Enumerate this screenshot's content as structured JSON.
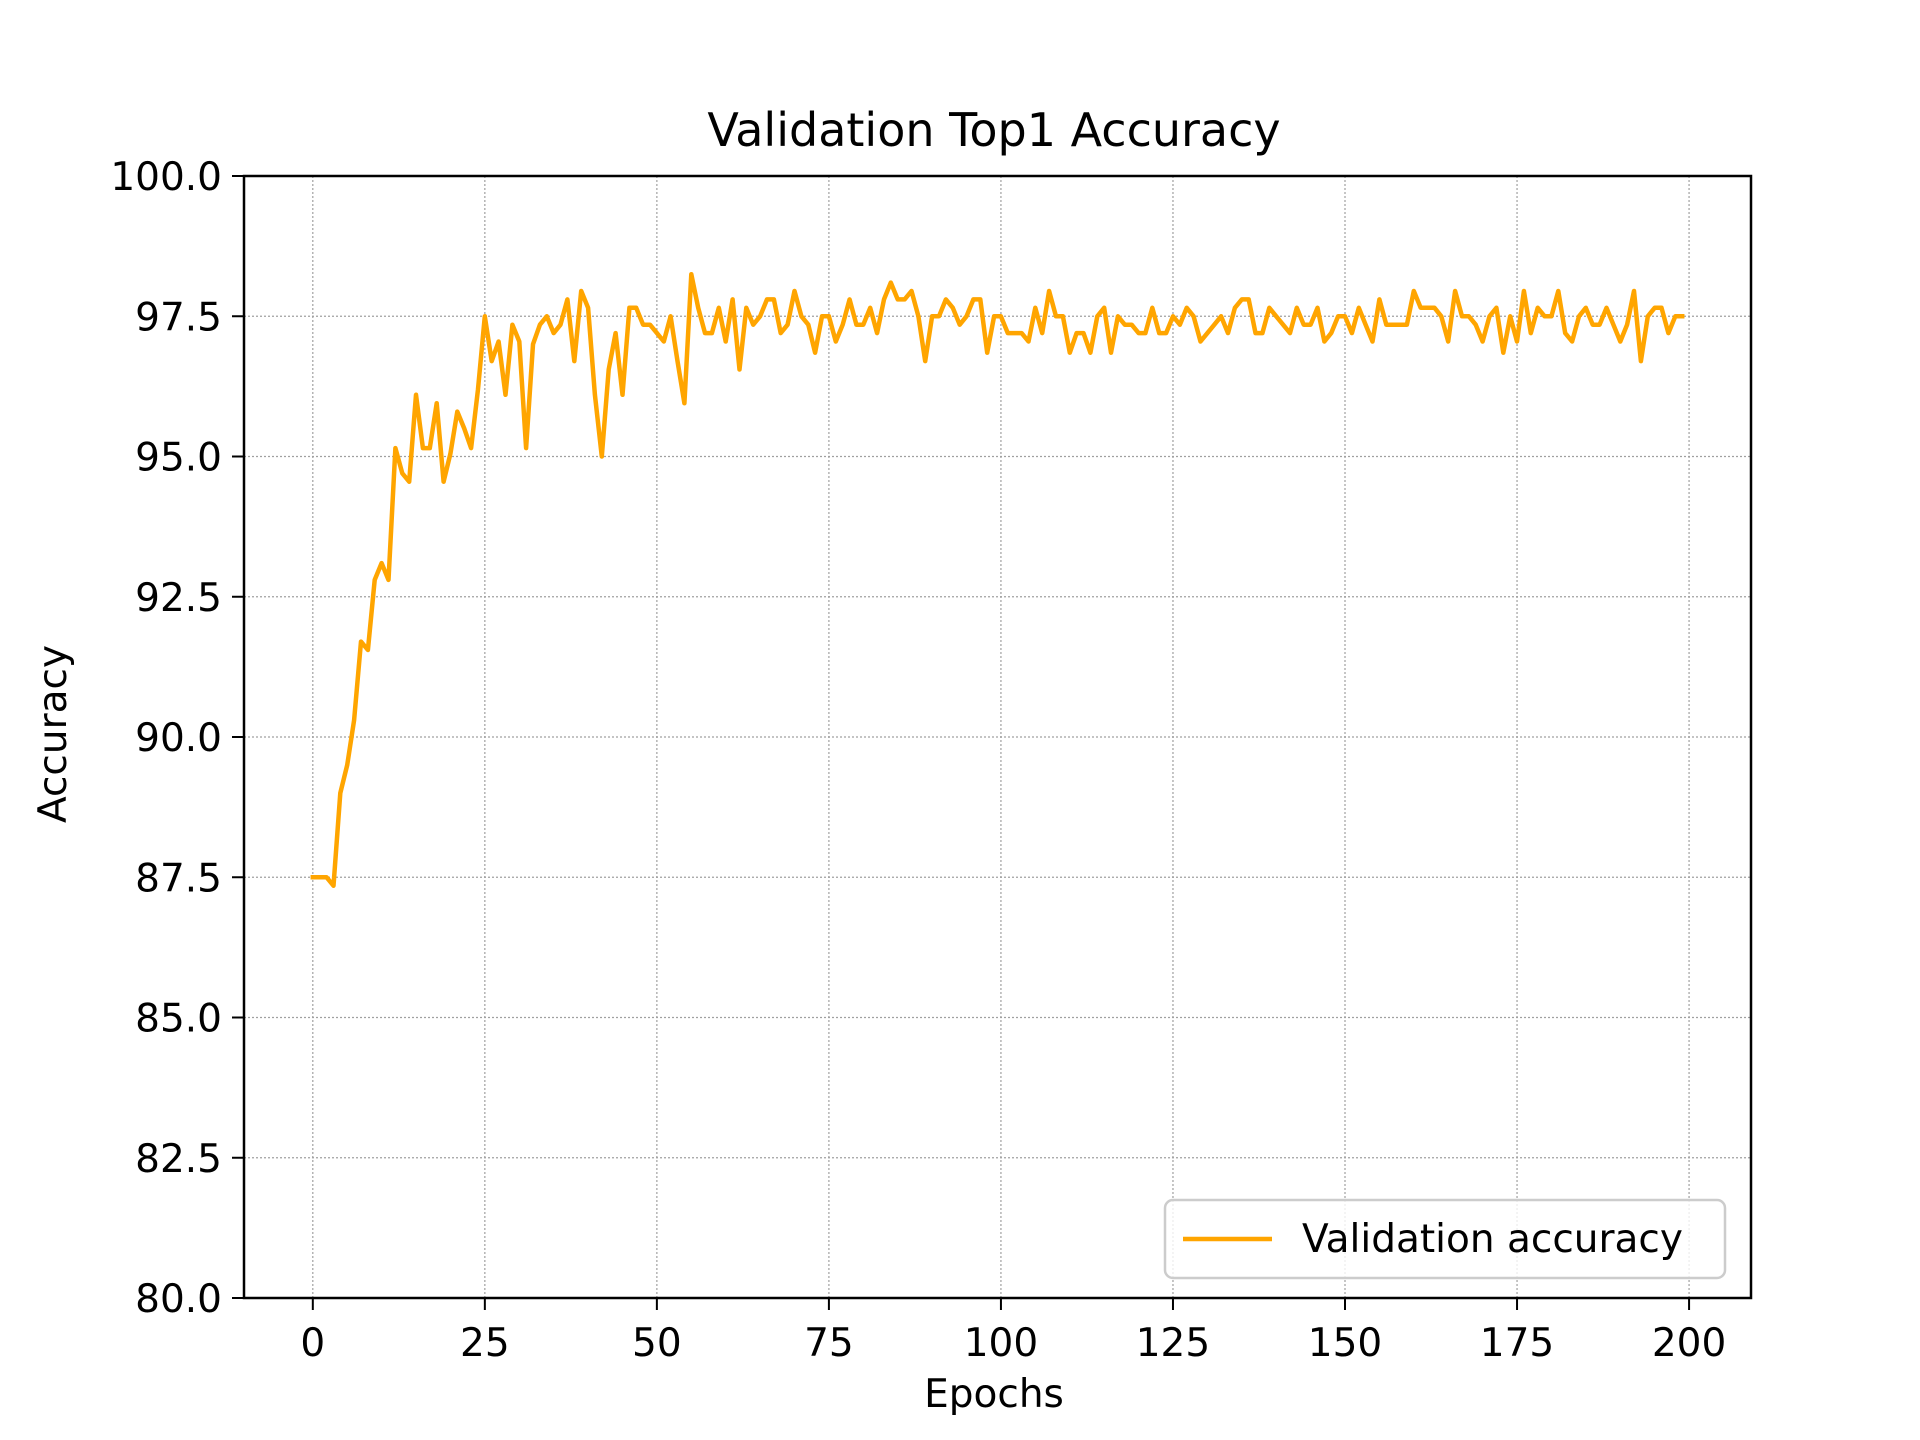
{
  "chart_data": {
    "type": "line",
    "title": "Validation Top1 Accuracy",
    "xlabel": "Epochs",
    "ylabel": "Accuracy",
    "xlim": [
      -10,
      209
    ],
    "ylim": [
      80.0,
      100.0
    ],
    "xticks": [
      0,
      25,
      50,
      75,
      100,
      125,
      150,
      175,
      200
    ],
    "xtick_labels": [
      "0",
      "25",
      "50",
      "75",
      "100",
      "125",
      "150",
      "175",
      "200"
    ],
    "yticks": [
      80.0,
      82.5,
      85.0,
      87.5,
      90.0,
      92.5,
      95.0,
      97.5,
      100.0
    ],
    "ytick_labels": [
      "80.0",
      "82.5",
      "85.0",
      "87.5",
      "90.0",
      "92.5",
      "95.0",
      "97.5",
      "100.0"
    ],
    "grid": true,
    "legend": {
      "position": "lower-right",
      "entries": [
        "Validation accuracy"
      ]
    },
    "series": [
      {
        "name": "Validation accuracy",
        "color": "#ffa500",
        "x": [
          0,
          1,
          2,
          3,
          4,
          5,
          6,
          7,
          8,
          9,
          10,
          11,
          12,
          13,
          14,
          15,
          16,
          17,
          18,
          19,
          20,
          21,
          22,
          23,
          24,
          25,
          26,
          27,
          28,
          29,
          30,
          31,
          32,
          33,
          34,
          35,
          36,
          37,
          38,
          39,
          40,
          41,
          42,
          43,
          44,
          45,
          46,
          47,
          48,
          49,
          50,
          51,
          52,
          53,
          54,
          55,
          56,
          57,
          58,
          59,
          60,
          61,
          62,
          63,
          64,
          65,
          66,
          67,
          68,
          69,
          70,
          71,
          72,
          73,
          74,
          75,
          76,
          77,
          78,
          79,
          80,
          81,
          82,
          83,
          84,
          85,
          86,
          87,
          88,
          89,
          90,
          91,
          92,
          93,
          94,
          95,
          96,
          97,
          98,
          99,
          100,
          101,
          102,
          103,
          104,
          105,
          106,
          107,
          108,
          109,
          110,
          111,
          112,
          113,
          114,
          115,
          116,
          117,
          118,
          119,
          120,
          121,
          122,
          123,
          124,
          125,
          126,
          127,
          128,
          129,
          130,
          131,
          132,
          133,
          134,
          135,
          136,
          137,
          138,
          139,
          140,
          141,
          142,
          143,
          144,
          145,
          146,
          147,
          148,
          149,
          150,
          151,
          152,
          153,
          154,
          155,
          156,
          157,
          158,
          159,
          160,
          161,
          162,
          163,
          164,
          165,
          166,
          167,
          168,
          169,
          170,
          171,
          172,
          173,
          174,
          175,
          176,
          177,
          178,
          179,
          180,
          181,
          182,
          183,
          184,
          185,
          186,
          187,
          188,
          189,
          190,
          191,
          192,
          193,
          194,
          195,
          196,
          197,
          198,
          199
        ],
        "values": [
          87.5,
          87.5,
          87.5,
          87.35,
          89.0,
          89.5,
          90.3,
          91.7,
          91.55,
          92.8,
          93.1,
          92.8,
          95.15,
          94.7,
          94.55,
          96.1,
          95.15,
          95.15,
          95.95,
          94.55,
          95.05,
          95.8,
          95.5,
          95.15,
          96.2,
          97.5,
          96.7,
          97.05,
          96.1,
          97.35,
          97.05,
          95.15,
          97.0,
          97.35,
          97.5,
          97.2,
          97.35,
          97.8,
          96.7,
          97.95,
          97.65,
          96.1,
          95.0,
          96.55,
          97.2,
          96.1,
          97.65,
          97.65,
          97.35,
          97.35,
          97.2,
          97.05,
          97.5,
          96.7,
          95.95,
          98.25,
          97.65,
          97.2,
          97.2,
          97.65,
          97.05,
          97.8,
          96.55,
          97.65,
          97.35,
          97.5,
          97.8,
          97.8,
          97.2,
          97.35,
          97.95,
          97.5,
          97.35,
          96.85,
          97.5,
          97.5,
          97.05,
          97.35,
          97.8,
          97.35,
          97.35,
          97.65,
          97.2,
          97.8,
          98.1,
          97.8,
          97.8,
          97.95,
          97.5,
          96.7,
          97.5,
          97.5,
          97.8,
          97.65,
          97.35,
          97.5,
          97.8,
          97.8,
          96.85,
          97.5,
          97.5,
          97.2,
          97.2,
          97.2,
          97.05,
          97.65,
          97.2,
          97.95,
          97.5,
          97.5,
          96.85,
          97.2,
          97.2,
          96.85,
          97.5,
          97.65,
          96.85,
          97.5,
          97.35,
          97.35,
          97.2,
          97.2,
          97.65,
          97.2,
          97.2,
          97.5,
          97.35,
          97.65,
          97.5,
          97.05,
          97.2,
          97.35,
          97.5,
          97.2,
          97.65,
          97.8,
          97.8,
          97.2,
          97.2,
          97.65,
          97.5,
          97.35,
          97.2,
          97.65,
          97.35,
          97.35,
          97.65,
          97.05,
          97.2,
          97.5,
          97.5,
          97.2,
          97.65,
          97.35,
          97.05,
          97.8,
          97.35,
          97.35,
          97.35,
          97.35,
          97.95,
          97.65,
          97.65,
          97.65,
          97.5,
          97.05,
          97.95,
          97.5,
          97.5,
          97.35,
          97.05,
          97.5,
          97.65,
          96.85,
          97.5,
          97.05,
          97.95,
          97.2,
          97.65,
          97.5,
          97.5,
          97.95,
          97.2,
          97.05,
          97.5,
          97.65,
          97.35,
          97.35,
          97.65,
          97.35,
          97.05,
          97.35,
          97.95,
          96.7,
          97.5,
          97.65,
          97.65,
          97.2,
          97.5,
          97.5
        ]
      }
    ]
  }
}
